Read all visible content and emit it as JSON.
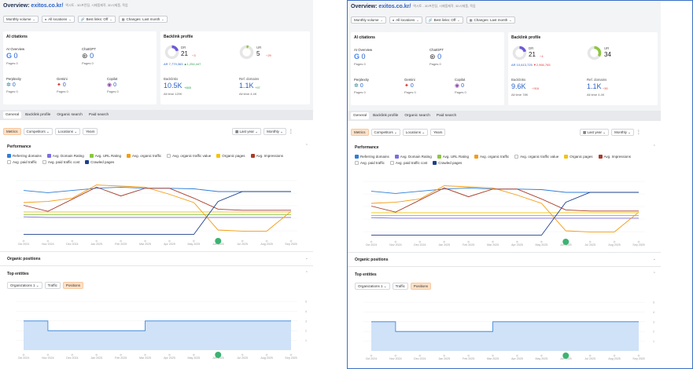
{
  "header": {
    "prefix": "Overview:",
    "domain": "exitos.co.kr/",
    "subtitle": "엑시토 - 3D프린팅, 시제품제작, 3D시제품, 목업"
  },
  "header2": {
    "subtitle": "엑시토 - 3D프린팅, 시제품제작, 3D시제품, 목업"
  },
  "filters": {
    "volume": "Monthly volume",
    "locations": "All locations",
    "best_links": "Best links: Off",
    "changes": "Changes: Last month"
  },
  "ai": {
    "title": "AI citations",
    "overview": {
      "label": "AI Overview",
      "value": "0"
    },
    "chatgpt": {
      "label": "ChatGPT",
      "value": "0",
      "pages": "Pages 0"
    },
    "perplexity": {
      "label": "Perplexity",
      "value": "0",
      "pages": "Pages 0"
    },
    "gemini": {
      "label": "Gemini",
      "value": "0",
      "pages": "Pages 0"
    },
    "copilot": {
      "label": "Copilot",
      "value": "0",
      "pages": "Pages 0"
    },
    "ov_pages": "Pages 0"
  },
  "backlink": {
    "title": "Backlink profile",
    "p0": {
      "dr_label": "DR",
      "dr": "21",
      "dr_delta": "−3",
      "ur_label": "UR",
      "ur": "5",
      "ur_delta": "−29",
      "ar": "AR 7,779,363",
      "ar_delta": "▲1,254,447",
      "backlinks_label": "Backlinks",
      "backlinks": "10.5K",
      "backlinks_delta": "+665",
      "refd_label": "Ref. domains",
      "refd": "1.1K",
      "refd_delta": "+97",
      "bl_all": "All time 120K",
      "rd_all": "All time 4.4K"
    },
    "p1": {
      "dr_label": "DR",
      "dr": "21",
      "dr_delta": "−4",
      "ur_label": "UR",
      "ur": "34",
      "ar": "AR 10,613,725",
      "ar_delta": "▼2,966,765",
      "backlinks_label": "Backlinks",
      "backlinks": "9.6K",
      "backlinks_delta": "−916",
      "refd_label": "Ref. domains",
      "refd": "1.1K",
      "refd_delta": "−50",
      "bl_all": "All time 78K",
      "rd_all": "All time 4.4K"
    }
  },
  "tabs": [
    "General",
    "Backlink profile",
    "Organic search",
    "Paid search"
  ],
  "controls": {
    "metrics": "Metrics",
    "competitors": "Competitors",
    "locations": "Locations",
    "years": "Years",
    "period": "Last year",
    "granularity": "Monthly"
  },
  "performance": {
    "title": "Performance",
    "legend": [
      {
        "label": "Referring domains",
        "color": "#2f7ed8",
        "on": true
      },
      {
        "label": "Avg. Domain Rating",
        "color": "#7b6ee0",
        "on": true
      },
      {
        "label": "Avg. URL Rating",
        "color": "#8dc63f",
        "on": true
      },
      {
        "label": "Avg. organic traffic",
        "color": "#f39c12",
        "on": true
      },
      {
        "label": "Avg. organic traffic value",
        "color": "#cccccc",
        "on": false
      },
      {
        "label": "Organic pages",
        "color": "#f1c40f",
        "on": true
      },
      {
        "label": "Avg. Impressions",
        "color": "#a83c2a",
        "on": true
      },
      {
        "label": "Avg. paid traffic",
        "color": "#cccccc",
        "on": false
      },
      {
        "label": "Avg. paid traffic cost",
        "color": "#cccccc",
        "on": false
      },
      {
        "label": "Crawled pages",
        "color": "#1e3f8f",
        "on": true
      }
    ]
  },
  "organic_positions": "Organic positions",
  "top_entities": {
    "title": "Top entities",
    "org": "Organizations 1",
    "traffic": "Traffic",
    "positions": "Positions"
  },
  "axis_labels": [
    "Oct 2024",
    "Nov 2024",
    "Dec 2024",
    "Jan 2025",
    "Feb 2025",
    "Mar 2025",
    "Apr 2025",
    "May 2025",
    "Jun 2025",
    "Jul 2025",
    "Aug 2025",
    "Sep 2025"
  ],
  "chart_data": [
    {
      "type": "line",
      "x": [
        "Oct 2024",
        "Nov 2024",
        "Dec 2024",
        "Jan 2025",
        "Feb 2025",
        "Mar 2025",
        "Apr 2025",
        "May 2025",
        "Jun 2025",
        "Jul 2025",
        "Aug 2025",
        "Sep 2025"
      ],
      "ylim": [
        0,
        100
      ],
      "series": [
        {
          "name": "Referring domains",
          "color": "#2f7ed8",
          "values": [
            82,
            78,
            82,
            86,
            88,
            86,
            86,
            85,
            80,
            80,
            80,
            80
          ]
        },
        {
          "name": "Avg. Domain Rating",
          "color": "#7b6ee0",
          "values": [
            34,
            33,
            33,
            33,
            33,
            33,
            33,
            33,
            33,
            33,
            33,
            33
          ]
        },
        {
          "name": "Avg. URL Rating",
          "color": "#8dc63f",
          "values": [
            38,
            38,
            38,
            38,
            38,
            38,
            38,
            38,
            38,
            38,
            38,
            38
          ]
        },
        {
          "name": "Avg. organic traffic",
          "color": "#f39c12",
          "values": [
            60,
            62,
            68,
            92,
            90,
            88,
            75,
            60,
            10,
            8,
            8,
            44
          ]
        },
        {
          "name": "Organic pages",
          "color": "#f1c40f",
          "values": [
            43,
            43,
            43,
            43,
            43,
            43,
            43,
            43,
            43,
            43,
            43,
            43
          ]
        },
        {
          "name": "Avg. Impressions",
          "color": "#a83c2a",
          "values": [
            55,
            44,
            66,
            88,
            72,
            86,
            86,
            68,
            48,
            46,
            46,
            46
          ]
        },
        {
          "name": "Crawled pages",
          "color": "#1e3f8f",
          "values": [
            2,
            2,
            2,
            2,
            2,
            2,
            2,
            2,
            62,
            80,
            80,
            80
          ]
        }
      ]
    },
    {
      "type": "area",
      "x": [
        "Oct 2024",
        "Nov 2024",
        "Dec 2024",
        "Jan 2025",
        "Feb 2025",
        "Mar 2025",
        "Apr 2025",
        "May 2025",
        "Jun 2025",
        "Jul 2025",
        "Aug 2025",
        "Sep 2025"
      ],
      "ylim": [
        0,
        5
      ],
      "yticks": [
        "1",
        "2",
        "3",
        "4",
        "5"
      ],
      "series": [
        {
          "name": "Positions",
          "color": "#2f7ed8",
          "values": [
            3,
            2,
            2,
            2,
            2,
            3,
            3,
            3,
            3,
            3,
            3,
            3
          ]
        }
      ]
    }
  ]
}
